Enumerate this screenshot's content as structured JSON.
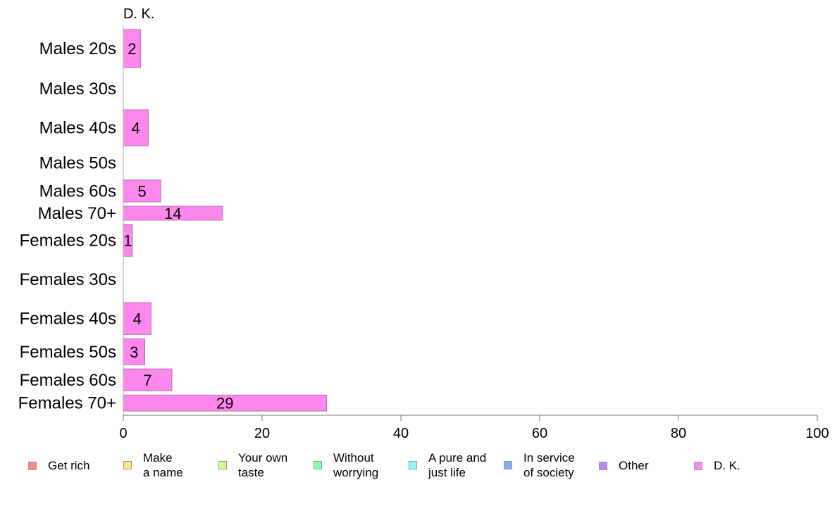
{
  "chart_data": {
    "type": "bar",
    "orientation": "horizontal",
    "facet_title": "D. K.",
    "categories": [
      "Males 20s",
      "Males 30s",
      "Males 40s",
      "Males 50s",
      "Males 60s",
      "Males 70+",
      "Females 20s",
      "Females 30s",
      "Females 40s",
      "Females 50s",
      "Females 60s",
      "Females 70+"
    ],
    "values": [
      2.5,
      0,
      3.6,
      0,
      5.4,
      14.3,
      1.3,
      0,
      4.0,
      3.1,
      7.0,
      29.3
    ],
    "data_labels": [
      "2",
      "",
      "4",
      "",
      "5",
      "14",
      "1",
      "",
      "4",
      "3",
      "7",
      "29"
    ],
    "row_weights": [
      0.95,
      0.85,
      0.9,
      0.65,
      0.55,
      0.35,
      0.8,
      0.95,
      0.8,
      0.65,
      0.55,
      0.4
    ],
    "xlim": [
      0,
      100
    ],
    "xticks": [
      "0",
      "20",
      "40",
      "60",
      "80",
      "100"
    ],
    "xlabel": "",
    "ylabel": "",
    "grid": false,
    "series_color": "#ff88ee",
    "legend_position": "bottom",
    "legend": [
      {
        "label": "Get rich",
        "color": "#ff8888"
      },
      {
        "label": "Make\na name",
        "color": "#ffe680"
      },
      {
        "label": "Your own\ntaste",
        "color": "#ccff88"
      },
      {
        "label": "Without\nworrying",
        "color": "#88ffaa"
      },
      {
        "label": "A pure and\njust life",
        "color": "#88ffff"
      },
      {
        "label": "In service\nof society",
        "color": "#88aaff"
      },
      {
        "label": "Other",
        "color": "#bb88ff"
      },
      {
        "label": "D. K.",
        "color": "#ff88ee"
      }
    ]
  }
}
